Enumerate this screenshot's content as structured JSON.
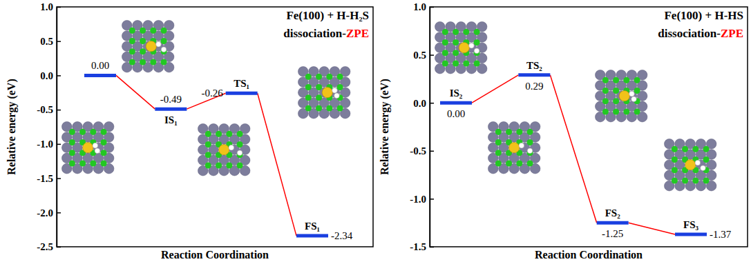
{
  "chart_data": [
    {
      "type": "energy_diagram",
      "title": "Fe(100) + H-H₂S",
      "subtitle": [
        {
          "text": "dissociation-",
          "color": "#000000"
        },
        {
          "text": "ZPE",
          "color": "#ff0000"
        }
      ],
      "x_label": "Reaction Coordination",
      "y_label": "Relative energy (eV)",
      "categories": [
        null,
        "IS₁",
        "TS₁",
        "FS₁"
      ],
      "values": [
        0.0,
        -0.49,
        -0.26,
        -2.34
      ],
      "value_labels": [
        "0.00",
        "-0.49",
        "-0.26",
        "-2.34"
      ],
      "data_labels": true,
      "color": "#1a3fe0",
      "ylim": [
        -2.5,
        1.0
      ],
      "yticks": [
        -2.5,
        {
          "value": -2,
          "label": "-2.0"
        },
        -1.5,
        {
          "value": -1,
          "label": "-1.0"
        },
        -0.5,
        {
          "value": 0,
          "label": "0.0"
        },
        0.5,
        {
          "value": 1,
          "label": "1.0"
        }
      ],
      "tick_labels": "y"
    },
    {
      "type": "energy_diagram",
      "title": "Fe(100) + H-HS",
      "subtitle": [
        {
          "text": "dissociation-",
          "color": "#000000"
        },
        {
          "text": "ZPE",
          "color": "#ff0000"
        }
      ],
      "x_label": "Reaction Coordination",
      "y_label": "Relative energy (eV)",
      "categories": [
        "IS₂",
        "TS₂",
        "FS₂",
        "FS₃"
      ],
      "values": [
        0.0,
        0.29,
        -1.25,
        -1.37
      ],
      "value_labels": [
        "0.00",
        "0.29",
        "-1.25",
        "-1.37"
      ],
      "data_labels": true,
      "color": "#1a3fe0",
      "ylim": [
        -1.5,
        1.0
      ],
      "yticks": [
        -1.5,
        {
          "value": -1,
          "label": "-1.0"
        },
        -0.5,
        {
          "value": 0,
          "label": "0.0"
        },
        0.5,
        {
          "value": 1,
          "label": "1.0"
        }
      ],
      "tick_labels": "y"
    }
  ]
}
